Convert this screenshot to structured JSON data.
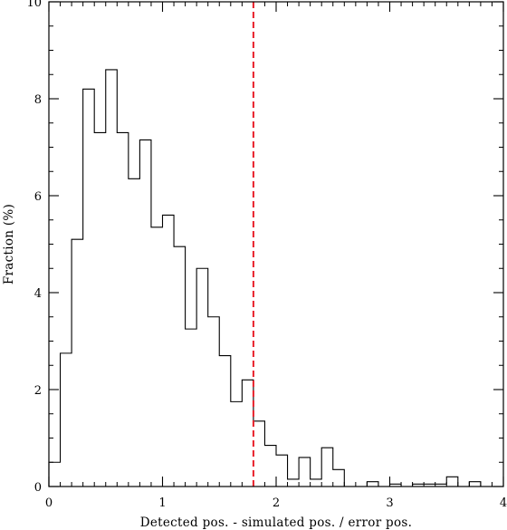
{
  "chart_data": {
    "type": "histogram",
    "xlabel": "Detected pos. - simulated pos. / error pos.",
    "ylabel": "Fraction (%)",
    "xlim": [
      0,
      4
    ],
    "ylim": [
      0,
      10
    ],
    "xticks": [
      0,
      1,
      2,
      3,
      4
    ],
    "yticks": [
      0,
      2,
      4,
      6,
      8,
      10
    ],
    "x_minor_step": 0.1,
    "y_minor_step": 0.5,
    "grid": false,
    "bin_width": 0.1,
    "series": [
      {
        "style": "step",
        "color": "#000000",
        "bins": [
          {
            "x0": 0.0,
            "value": 0.5
          },
          {
            "x0": 0.1,
            "value": 2.75
          },
          {
            "x0": 0.2,
            "value": 5.1
          },
          {
            "x0": 0.3,
            "value": 8.2
          },
          {
            "x0": 0.4,
            "value": 7.3
          },
          {
            "x0": 0.5,
            "value": 8.6
          },
          {
            "x0": 0.6,
            "value": 7.3
          },
          {
            "x0": 0.7,
            "value": 6.35
          },
          {
            "x0": 0.8,
            "value": 7.15
          },
          {
            "x0": 0.9,
            "value": 5.35
          },
          {
            "x0": 1.0,
            "value": 5.6
          },
          {
            "x0": 1.1,
            "value": 4.95
          },
          {
            "x0": 1.2,
            "value": 3.25
          },
          {
            "x0": 1.3,
            "value": 4.5
          },
          {
            "x0": 1.4,
            "value": 3.5
          },
          {
            "x0": 1.5,
            "value": 2.7
          },
          {
            "x0": 1.6,
            "value": 1.75
          },
          {
            "x0": 1.7,
            "value": 2.2
          },
          {
            "x0": 1.8,
            "value": 1.35
          },
          {
            "x0": 1.9,
            "value": 0.85
          },
          {
            "x0": 2.0,
            "value": 0.65
          },
          {
            "x0": 2.1,
            "value": 0.15
          },
          {
            "x0": 2.2,
            "value": 0.6
          },
          {
            "x0": 2.3,
            "value": 0.15
          },
          {
            "x0": 2.4,
            "value": 0.8
          },
          {
            "x0": 2.5,
            "value": 0.35
          },
          {
            "x0": 2.6,
            "value": 0.0
          },
          {
            "x0": 2.7,
            "value": 0.0
          },
          {
            "x0": 2.8,
            "value": 0.1
          },
          {
            "x0": 2.9,
            "value": 0.0
          },
          {
            "x0": 3.0,
            "value": 0.05
          },
          {
            "x0": 3.1,
            "value": 0.0
          },
          {
            "x0": 3.2,
            "value": 0.05
          },
          {
            "x0": 3.3,
            "value": 0.05
          },
          {
            "x0": 3.4,
            "value": 0.05
          },
          {
            "x0": 3.5,
            "value": 0.2
          },
          {
            "x0": 3.6,
            "value": 0.0
          },
          {
            "x0": 3.7,
            "value": 0.1
          },
          {
            "x0": 3.8,
            "value": 0.0
          },
          {
            "x0": 3.9,
            "value": 0.0
          }
        ]
      }
    ],
    "reference_line": {
      "x": 1.8,
      "style": "dashed",
      "color": "#e8202a"
    }
  }
}
